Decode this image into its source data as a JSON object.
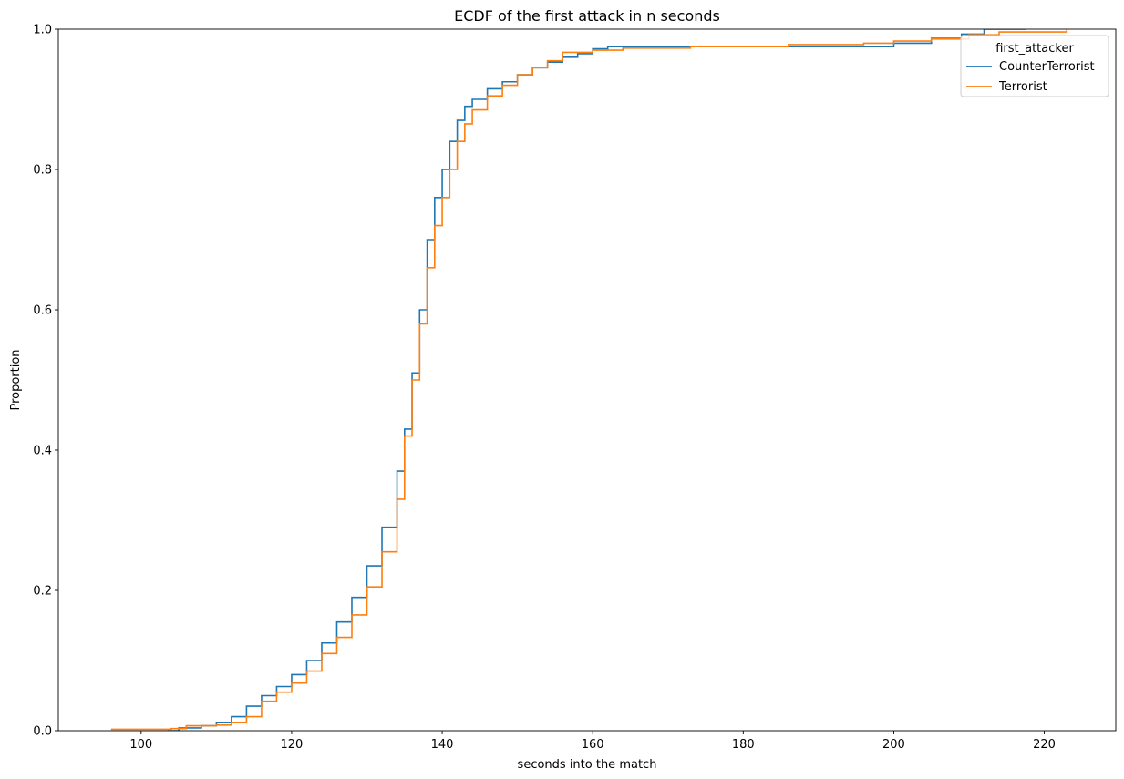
{
  "chart_data": {
    "type": "line",
    "title": "ECDF of the first attack in n seconds",
    "xlabel": "seconds into the match",
    "ylabel": "Proportion",
    "xlim": [
      89,
      229.5
    ],
    "ylim": [
      0,
      1
    ],
    "xticks": [
      100,
      120,
      140,
      160,
      180,
      200,
      220
    ],
    "yticks": [
      0.0,
      0.2,
      0.4,
      0.6,
      0.8,
      1.0
    ],
    "xtick_labels": [
      "100",
      "120",
      "140",
      "160",
      "180",
      "200",
      "220"
    ],
    "ytick_labels": [
      "0.0",
      "0.2",
      "0.4",
      "0.6",
      "0.8",
      "1.0"
    ],
    "grid": false,
    "legend": {
      "title": "first_attacker",
      "placement": "top-right"
    },
    "series": [
      {
        "name": "CounterTerrorist",
        "color": "#1f77b4",
        "step": true,
        "x": [
          103.5,
          105,
          108,
          110,
          112,
          114,
          116,
          118,
          120,
          122,
          124,
          126,
          128,
          130,
          132,
          134,
          135,
          136,
          137,
          138,
          139,
          140,
          141,
          142,
          143,
          144,
          146,
          148,
          150,
          152,
          154,
          156,
          158,
          160,
          162,
          170,
          180,
          196,
          200,
          205,
          209,
          212,
          217.5
        ],
        "y": [
          0.0,
          0.004,
          0.007,
          0.012,
          0.02,
          0.035,
          0.05,
          0.063,
          0.08,
          0.1,
          0.125,
          0.155,
          0.19,
          0.235,
          0.29,
          0.37,
          0.43,
          0.51,
          0.6,
          0.7,
          0.76,
          0.8,
          0.84,
          0.87,
          0.89,
          0.9,
          0.915,
          0.925,
          0.935,
          0.945,
          0.953,
          0.96,
          0.965,
          0.972,
          0.975,
          0.975,
          0.975,
          0.975,
          0.98,
          0.987,
          0.993,
          1.0,
          1.0
        ]
      },
      {
        "name": "Terrorist",
        "color": "#ff7f0e",
        "step": true,
        "x": [
          96,
          104,
          106,
          110,
          112,
          114,
          116,
          118,
          120,
          122,
          124,
          126,
          128,
          130,
          132,
          134,
          135,
          136,
          137,
          138,
          139,
          140,
          141,
          142,
          143,
          144,
          146,
          148,
          150,
          152,
          154,
          156,
          160,
          164,
          173,
          186,
          196,
          200,
          205,
          210,
          214,
          223
        ],
        "y": [
          0.002,
          0.003,
          0.007,
          0.008,
          0.012,
          0.02,
          0.042,
          0.055,
          0.068,
          0.085,
          0.11,
          0.133,
          0.165,
          0.205,
          0.255,
          0.33,
          0.42,
          0.5,
          0.58,
          0.66,
          0.72,
          0.76,
          0.8,
          0.84,
          0.865,
          0.885,
          0.905,
          0.92,
          0.935,
          0.945,
          0.955,
          0.967,
          0.97,
          0.973,
          0.975,
          0.978,
          0.98,
          0.983,
          0.986,
          0.992,
          0.996,
          1.0
        ]
      }
    ]
  }
}
